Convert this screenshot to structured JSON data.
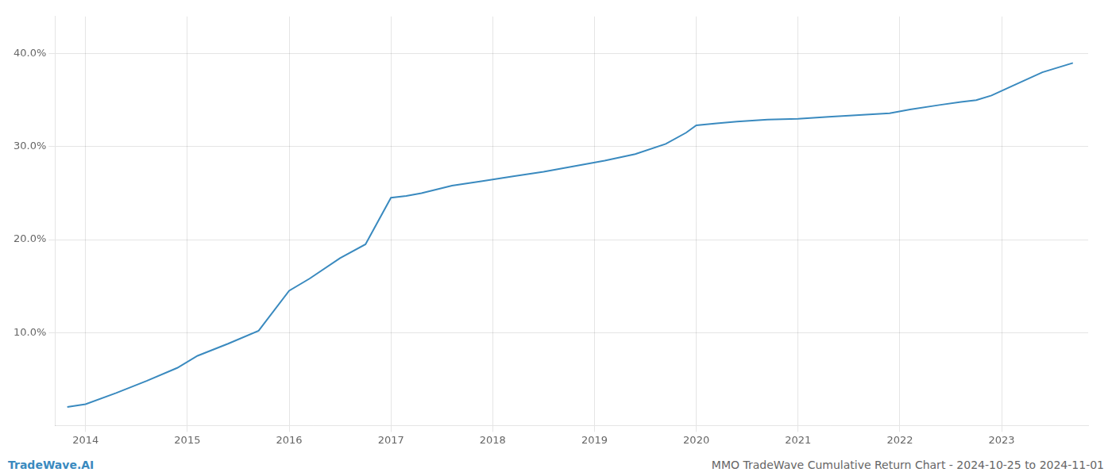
{
  "chart_data": {
    "type": "line",
    "x": [
      2013.82,
      2014.0,
      2014.3,
      2014.6,
      2014.9,
      2015.1,
      2015.4,
      2015.7,
      2016.0,
      2016.2,
      2016.5,
      2016.75,
      2017.0,
      2017.15,
      2017.3,
      2017.6,
      2017.9,
      2018.2,
      2018.5,
      2018.8,
      2019.1,
      2019.4,
      2019.7,
      2019.9,
      2020.0,
      2020.2,
      2020.4,
      2020.7,
      2021.0,
      2021.3,
      2021.6,
      2021.9,
      2022.1,
      2022.4,
      2022.6,
      2022.75,
      2022.9,
      2023.1,
      2023.4,
      2023.7
    ],
    "values": [
      2.0,
      2.3,
      3.5,
      4.8,
      6.2,
      7.5,
      8.8,
      10.2,
      14.5,
      15.8,
      18.0,
      19.5,
      24.5,
      24.7,
      25.0,
      25.8,
      26.3,
      26.8,
      27.3,
      27.9,
      28.5,
      29.2,
      30.3,
      31.5,
      32.3,
      32.5,
      32.7,
      32.9,
      33.0,
      33.2,
      33.4,
      33.6,
      34.0,
      34.5,
      34.8,
      35.0,
      35.5,
      36.5,
      38.0,
      39.0
    ],
    "color": "#3a8abf",
    "xlim": [
      2013.7,
      2023.85
    ],
    "xticks": [
      2014,
      2015,
      2016,
      2017,
      2018,
      2019,
      2020,
      2021,
      2022,
      2023
    ],
    "ylim": [
      0,
      44
    ],
    "yticks": [
      {
        "value": 10,
        "label": "10.0%"
      },
      {
        "value": 20,
        "label": "20.0%"
      },
      {
        "value": 30,
        "label": "30.0%"
      },
      {
        "value": 40,
        "label": "40.0%"
      }
    ],
    "grid": true,
    "annotations": [
      "TradeWave.AI",
      "MMO TradeWave Cumulative Return Chart - 2024-10-25 to 2024-11-01"
    ]
  }
}
